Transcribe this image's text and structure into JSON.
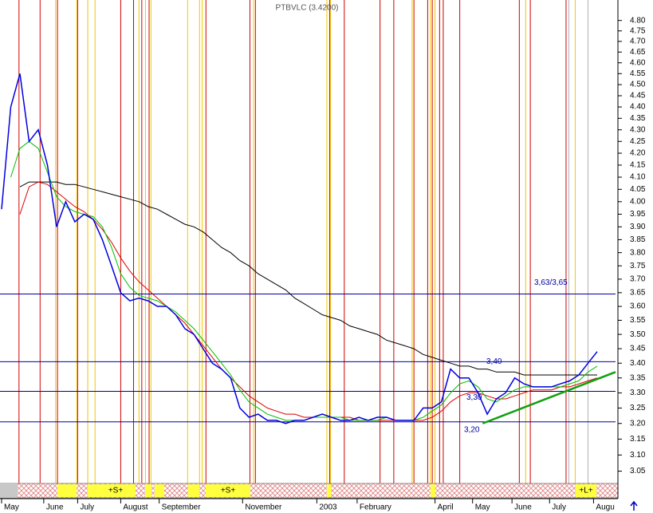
{
  "chart_data": {
    "type": "line",
    "title": "PTBVLC (3.4200)",
    "log": true,
    "xlim": [
      0,
      67
    ],
    "ylim": [
      3.01,
      4.9
    ],
    "xticks": [
      {
        "value": 0,
        "label": "May"
      },
      {
        "value": 4.6,
        "label": "June"
      },
      {
        "value": 8.3,
        "label": "July"
      },
      {
        "value": 13,
        "label": "August"
      },
      {
        "value": 17.2,
        "label": "September"
      },
      {
        "value": 26.3,
        "label": "November"
      },
      {
        "value": 34.4,
        "label": "2003"
      },
      {
        "value": 38.8,
        "label": "February"
      },
      {
        "value": 47.3,
        "label": "April"
      },
      {
        "value": 51.4,
        "label": "May"
      },
      {
        "value": 55.7,
        "label": "June"
      },
      {
        "value": 59.8,
        "label": "July"
      },
      {
        "value": 64.6,
        "label": "Augu"
      }
    ],
    "yticks": [
      {
        "value": 3.05,
        "label": "3.05"
      },
      {
        "value": 3.1,
        "label": "3.10"
      },
      {
        "value": 3.15,
        "label": "3.15"
      },
      {
        "value": 3.2,
        "label": "3.20"
      },
      {
        "value": 3.25,
        "label": "3.25"
      },
      {
        "value": 3.3,
        "label": "3.30"
      },
      {
        "value": 3.35,
        "label": "3.35"
      },
      {
        "value": 3.4,
        "label": "3.40"
      },
      {
        "value": 3.45,
        "label": "3.45"
      },
      {
        "value": 3.5,
        "label": "3.50"
      },
      {
        "value": 3.55,
        "label": "3.55"
      },
      {
        "value": 3.6,
        "label": "3.60"
      },
      {
        "value": 3.65,
        "label": "3.65"
      },
      {
        "value": 3.7,
        "label": "3.70"
      },
      {
        "value": 3.75,
        "label": "3.75"
      },
      {
        "value": 3.8,
        "label": "3.80"
      },
      {
        "value": 3.85,
        "label": "3.85"
      },
      {
        "value": 3.9,
        "label": "3.90"
      },
      {
        "value": 3.95,
        "label": "3.95"
      },
      {
        "value": 4.0,
        "label": "4.00"
      },
      {
        "value": 4.05,
        "label": "4.05"
      },
      {
        "value": 4.1,
        "label": "4.10"
      },
      {
        "value": 4.15,
        "label": "4.15"
      },
      {
        "value": 4.2,
        "label": "4.20"
      },
      {
        "value": 4.25,
        "label": "4.25"
      },
      {
        "value": 4.3,
        "label": "4.30"
      },
      {
        "value": 4.35,
        "label": "4.35"
      },
      {
        "value": 4.4,
        "label": "4.40"
      },
      {
        "value": 4.45,
        "label": "4.45"
      },
      {
        "value": 4.5,
        "label": "4.50"
      },
      {
        "value": 4.55,
        "label": "4.55"
      },
      {
        "value": 4.6,
        "label": "4.60"
      },
      {
        "value": 4.65,
        "label": "4.65"
      },
      {
        "value": 4.7,
        "label": "4.70"
      },
      {
        "value": 4.75,
        "label": "4.75"
      },
      {
        "value": 4.8,
        "label": "4.80"
      }
    ],
    "series": [
      {
        "color": "#000000",
        "values": [
          null,
          null,
          4.06,
          4.08,
          4.08,
          4.08,
          4.08,
          4.07,
          4.07,
          4.06,
          4.05,
          4.04,
          4.03,
          4.02,
          4.01,
          4.0,
          3.98,
          3.97,
          3.95,
          3.93,
          3.91,
          3.9,
          3.88,
          3.85,
          3.82,
          3.8,
          3.77,
          3.75,
          3.72,
          3.7,
          3.68,
          3.66,
          3.63,
          3.61,
          3.59,
          3.57,
          3.56,
          3.55,
          3.53,
          3.52,
          3.51,
          3.5,
          3.48,
          3.47,
          3.46,
          3.45,
          3.43,
          3.42,
          3.41,
          3.4,
          3.39,
          3.39,
          3.38,
          3.38,
          3.37,
          3.37,
          3.37,
          3.36,
          3.36,
          3.36,
          3.36,
          3.36,
          3.36,
          3.36,
          3.36,
          3.36
        ]
      },
      {
        "color": "#e00000",
        "values": [
          null,
          null,
          3.95,
          4.06,
          4.08,
          4.07,
          4.04,
          4.01,
          3.98,
          3.96,
          3.93,
          3.89,
          3.84,
          3.78,
          3.73,
          3.69,
          3.66,
          3.63,
          3.6,
          3.57,
          3.54,
          3.5,
          3.46,
          3.42,
          3.38,
          3.35,
          3.32,
          3.29,
          3.27,
          3.25,
          3.24,
          3.23,
          3.23,
          3.22,
          3.22,
          3.22,
          3.22,
          3.22,
          3.22,
          3.21,
          3.21,
          3.21,
          3.21,
          3.21,
          3.21,
          3.21,
          3.21,
          3.22,
          3.24,
          3.27,
          3.29,
          3.3,
          3.3,
          3.29,
          3.28,
          3.28,
          3.29,
          3.3,
          3.31,
          3.31,
          3.31,
          3.32,
          3.32,
          3.33,
          3.34,
          3.35
        ]
      },
      {
        "color": "#00c000",
        "values": [
          null,
          4.1,
          4.22,
          4.25,
          4.22,
          4.12,
          4.02,
          3.98,
          3.96,
          3.95,
          3.94,
          3.9,
          3.82,
          3.72,
          3.67,
          3.64,
          3.63,
          3.62,
          3.6,
          3.58,
          3.55,
          3.52,
          3.48,
          3.44,
          3.4,
          3.36,
          3.31,
          3.27,
          3.25,
          3.23,
          3.22,
          3.21,
          3.21,
          3.21,
          3.22,
          3.22,
          3.22,
          3.22,
          3.21,
          3.21,
          3.21,
          3.21,
          3.22,
          3.21,
          3.21,
          3.21,
          3.22,
          3.24,
          3.26,
          3.3,
          3.33,
          3.34,
          3.32,
          3.28,
          3.27,
          3.29,
          3.31,
          3.32,
          3.32,
          3.32,
          3.32,
          3.32,
          3.33,
          3.34,
          3.37,
          3.39
        ]
      },
      {
        "color": "#0000e0",
        "values": [
          3.97,
          4.4,
          4.55,
          4.25,
          4.3,
          4.15,
          3.9,
          4.0,
          3.92,
          3.95,
          3.93,
          3.85,
          3.75,
          3.65,
          3.62,
          3.63,
          3.62,
          3.6,
          3.6,
          3.57,
          3.52,
          3.5,
          3.45,
          3.4,
          3.38,
          3.35,
          3.25,
          3.22,
          3.23,
          3.21,
          3.21,
          3.2,
          3.21,
          3.21,
          3.22,
          3.23,
          3.22,
          3.21,
          3.21,
          3.22,
          3.21,
          3.22,
          3.22,
          3.21,
          3.21,
          3.21,
          3.25,
          3.25,
          3.27,
          3.38,
          3.35,
          3.35,
          3.3,
          3.23,
          3.28,
          3.3,
          3.35,
          3.33,
          3.32,
          3.32,
          3.32,
          3.33,
          3.34,
          3.36,
          3.4,
          3.44
        ]
      }
    ],
    "levels": [
      {
        "value": 3.645,
        "label": "3,63/3,65"
      },
      {
        "value": 3.405,
        "label": "3,40"
      },
      {
        "value": 3.305,
        "label": "3,30"
      },
      {
        "value": 3.205,
        "label": "3,20"
      }
    ],
    "level_color": "#0000a0",
    "trendline": {
      "color": "#10a010",
      "x": [
        52.5,
        67
      ],
      "values": [
        3.2,
        3.37
      ]
    },
    "signals": [
      {
        "color": "#d00000",
        "x": [
          1.9,
          4.2,
          6.1,
          8.3,
          13.0,
          14.4,
          15.3,
          16.1,
          22.3,
          27.1,
          27.7,
          35.8,
          37.4,
          41.3,
          42.8,
          45.0,
          46.5,
          47.0,
          47.8,
          48.2,
          50.0,
          56.5,
          57.7,
          61.6
        ]
      },
      {
        "color": "#f0c800",
        "x": [
          5.9,
          8.2,
          9.4,
          10.2,
          15.0,
          15.7,
          16.3,
          20.3,
          21.6,
          21.9,
          27.5,
          35.5,
          35.9,
          44.8,
          46.8,
          47.3,
          57.2,
          62.6
        ]
      },
      {
        "color": "#b0b0b0",
        "x": [
          61.9,
          64.0
        ]
      }
    ],
    "strip_labels": [
      "+S+",
      "+S+",
      "+L+"
    ]
  }
}
